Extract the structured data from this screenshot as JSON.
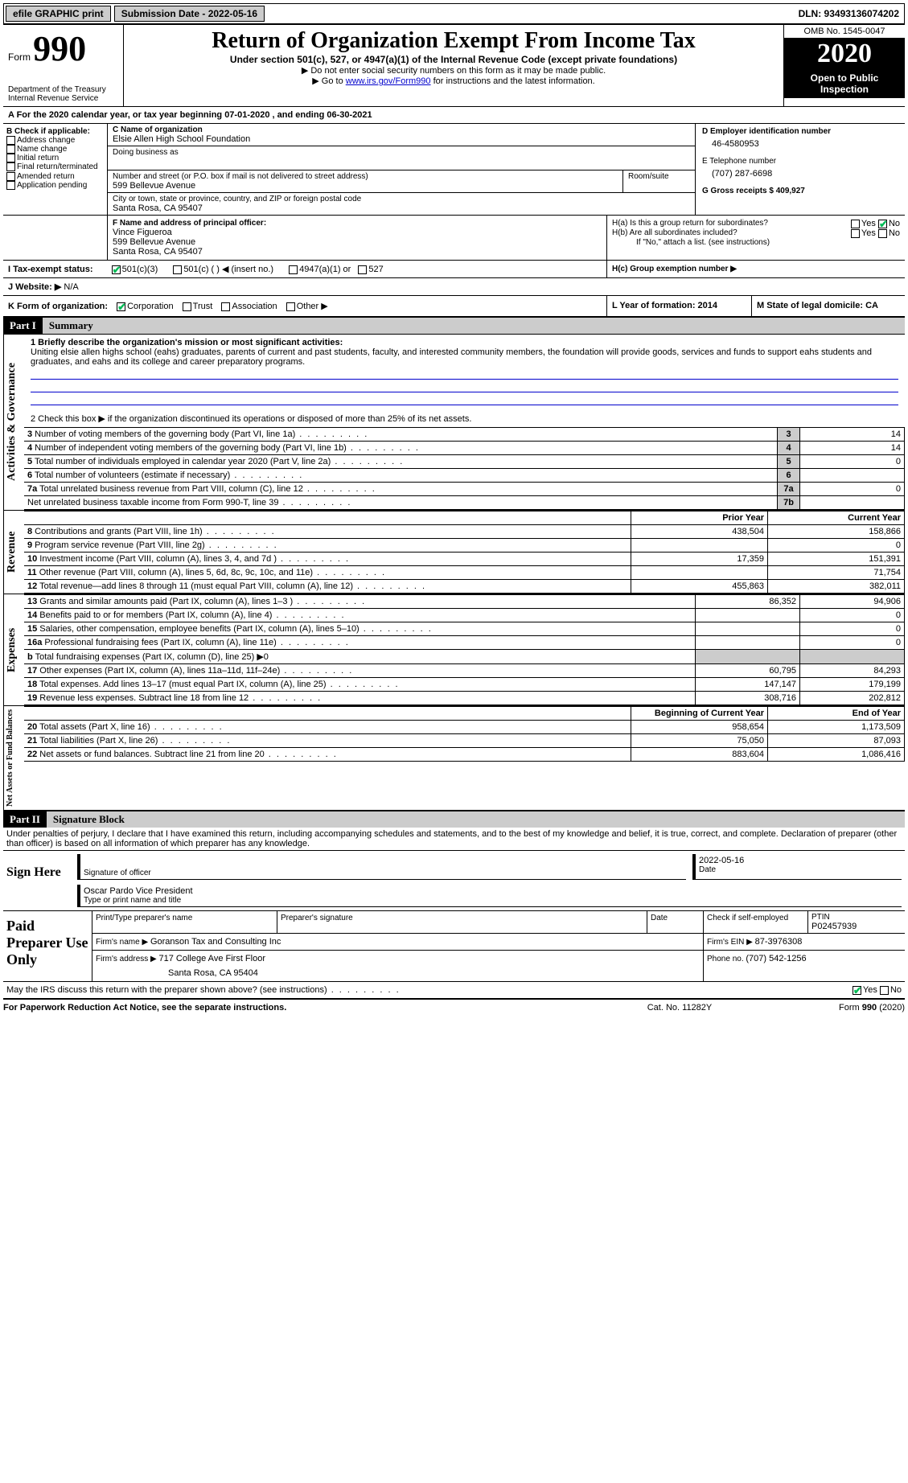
{
  "topbar": {
    "efile": "efile GRAPHIC print",
    "submission_label": "Submission Date - 2022-05-16",
    "dln_label": "DLN: 93493136074202"
  },
  "header": {
    "form_prefix": "Form",
    "form_number": "990",
    "dept": "Department of the Treasury\nInternal Revenue Service",
    "title": "Return of Organization Exempt From Income Tax",
    "subtitle": "Under section 501(c), 527, or 4947(a)(1) of the Internal Revenue Code (except private foundations)",
    "instr1": "▶ Do not enter social security numbers on this form as it may be made public.",
    "instr2_pre": "▶ Go to ",
    "instr2_link": "www.irs.gov/Form990",
    "instr2_post": " for instructions and the latest information.",
    "omb": "OMB No. 1545-0047",
    "year": "2020",
    "open_public": "Open to Public Inspection"
  },
  "sectionA": {
    "line": "A   For the 2020 calendar year, or tax year beginning 07-01-2020   , and ending 06-30-2021"
  },
  "sectionB": {
    "label": "B Check if applicable:",
    "items": [
      "Address change",
      "Name change",
      "Initial return",
      "Final return/terminated",
      "Amended return",
      "Application pending"
    ]
  },
  "sectionC": {
    "label": "C Name of organization",
    "name": "Elsie Allen High School Foundation",
    "dba_label": "Doing business as",
    "addr_label": "Number and street (or P.O. box if mail is not delivered to street address)",
    "addr": "599 Bellevue Avenue",
    "room_label": "Room/suite",
    "city_label": "City or town, state or province, country, and ZIP or foreign postal code",
    "city": "Santa Rosa, CA  95407"
  },
  "sectionD": {
    "label": "D Employer identification number",
    "value": "46-4580953"
  },
  "sectionE": {
    "label": "E Telephone number",
    "value": "(707) 287-6698"
  },
  "sectionG": {
    "label": "G Gross receipts $ 409,927"
  },
  "sectionF": {
    "label": "F  Name and address of principal officer:",
    "name": "Vince Figueroa",
    "addr1": "599 Bellevue Avenue",
    "addr2": "Santa Rosa, CA  95407"
  },
  "sectionH": {
    "a": "H(a)  Is this a group return for subordinates?",
    "b": "H(b)  Are all subordinates included?",
    "note": "If \"No,\" attach a list. (see instructions)",
    "c": "H(c)  Group exemption number ▶",
    "yes": "Yes",
    "no": "No"
  },
  "sectionI": {
    "label": "I   Tax-exempt status:",
    "o1": "501(c)(3)",
    "o2": "501(c) (  ) ◀ (insert no.)",
    "o3": "4947(a)(1) or",
    "o4": "527"
  },
  "sectionJ": {
    "label": "J   Website: ▶",
    "value": " N/A"
  },
  "sectionK": {
    "label": "K Form of organization:",
    "o1": "Corporation",
    "o2": "Trust",
    "o3": "Association",
    "o4": "Other ▶"
  },
  "sectionL": {
    "label": "L Year of formation: 2014"
  },
  "sectionM": {
    "label": "M State of legal domicile: CA"
  },
  "part1": {
    "hdr": "Part I",
    "title": "Summary",
    "side_ag": "Activities & Governance",
    "side_rev": "Revenue",
    "side_exp": "Expenses",
    "side_na": "Net Assets or Fund Balances",
    "line1_label": "1  Briefly describe the organization's mission or most significant activities:",
    "line1_text": "Uniting elsie allen highs school (eahs) graduates, parents of current and past students, faculty, and interested community members, the foundation will provide goods, services and funds to support eahs students and graduates, and eahs and its college and career preparatory programs.",
    "line2": "2   Check this box ▶      if the organization discontinued its operations or disposed of more than 25% of its net assets.",
    "rows_ag": [
      {
        "n": "3",
        "t": "Number of voting members of the governing body (Part VI, line 1a)",
        "k": "3",
        "v": "14"
      },
      {
        "n": "4",
        "t": "Number of independent voting members of the governing body (Part VI, line 1b)",
        "k": "4",
        "v": "14"
      },
      {
        "n": "5",
        "t": "Total number of individuals employed in calendar year 2020 (Part V, line 2a)",
        "k": "5",
        "v": "0"
      },
      {
        "n": "6",
        "t": "Total number of volunteers (estimate if necessary)",
        "k": "6",
        "v": ""
      },
      {
        "n": "7a",
        "t": "Total unrelated business revenue from Part VIII, column (C), line 12",
        "k": "7a",
        "v": "0"
      },
      {
        "n": "",
        "t": "Net unrelated business taxable income from Form 990-T, line 39",
        "k": "7b",
        "v": ""
      }
    ],
    "col_prior": "Prior Year",
    "col_current": "Current Year",
    "rows_rev": [
      {
        "n": "8",
        "t": "Contributions and grants (Part VIII, line 1h)",
        "p": "438,504",
        "c": "158,866"
      },
      {
        "n": "9",
        "t": "Program service revenue (Part VIII, line 2g)",
        "p": "",
        "c": "0"
      },
      {
        "n": "10",
        "t": "Investment income (Part VIII, column (A), lines 3, 4, and 7d )",
        "p": "17,359",
        "c": "151,391"
      },
      {
        "n": "11",
        "t": "Other revenue (Part VIII, column (A), lines 5, 6d, 8c, 9c, 10c, and 11e)",
        "p": "",
        "c": "71,754"
      },
      {
        "n": "12",
        "t": "Total revenue—add lines 8 through 11 (must equal Part VIII, column (A), line 12)",
        "p": "455,863",
        "c": "382,011"
      }
    ],
    "rows_exp": [
      {
        "n": "13",
        "t": "Grants and similar amounts paid (Part IX, column (A), lines 1–3 )",
        "p": "86,352",
        "c": "94,906"
      },
      {
        "n": "14",
        "t": "Benefits paid to or for members (Part IX, column (A), line 4)",
        "p": "",
        "c": "0"
      },
      {
        "n": "15",
        "t": "Salaries, other compensation, employee benefits (Part IX, column (A), lines 5–10)",
        "p": "",
        "c": "0"
      },
      {
        "n": "16a",
        "t": "Professional fundraising fees (Part IX, column (A), line 11e)",
        "p": "",
        "c": "0"
      },
      {
        "n": "b",
        "t": "Total fundraising expenses (Part IX, column (D), line 25) ▶0",
        "p": "—",
        "c": "—"
      },
      {
        "n": "17",
        "t": "Other expenses (Part IX, column (A), lines 11a–11d, 11f–24e)",
        "p": "60,795",
        "c": "84,293"
      },
      {
        "n": "18",
        "t": "Total expenses. Add lines 13–17 (must equal Part IX, column (A), line 25)",
        "p": "147,147",
        "c": "179,199"
      },
      {
        "n": "19",
        "t": "Revenue less expenses. Subtract line 18 from line 12",
        "p": "308,716",
        "c": "202,812"
      }
    ],
    "col_begin": "Beginning of Current Year",
    "col_end": "End of Year",
    "rows_na": [
      {
        "n": "20",
        "t": "Total assets (Part X, line 16)",
        "p": "958,654",
        "c": "1,173,509"
      },
      {
        "n": "21",
        "t": "Total liabilities (Part X, line 26)",
        "p": "75,050",
        "c": "87,093"
      },
      {
        "n": "22",
        "t": "Net assets or fund balances. Subtract line 21 from line 20",
        "p": "883,604",
        "c": "1,086,416"
      }
    ]
  },
  "part2": {
    "hdr": "Part II",
    "title": "Signature Block",
    "decl": "Under penalties of perjury, I declare that I have examined this return, including accompanying schedules and statements, and to the best of my knowledge and belief, it is true, correct, and complete. Declaration of preparer (other than officer) is based on all information of which preparer has any knowledge.",
    "sign_here": "Sign Here",
    "sig_officer": "Signature of officer",
    "sig_date": "2022-05-16",
    "date_lbl": "Date",
    "officer_name": "Oscar Pardo  Vice President",
    "type_name": "Type or print name and title",
    "paid": "Paid Preparer Use Only",
    "prep_name_lbl": "Print/Type preparer's name",
    "prep_sig_lbl": "Preparer's signature",
    "prep_date_lbl": "Date",
    "check_self": "Check       if self-employed",
    "ptin_lbl": "PTIN",
    "ptin": "P02457939",
    "firm_name_lbl": "Firm's name    ▶ ",
    "firm_name": "Goranson Tax and Consulting Inc",
    "firm_ein_lbl": "Firm's EIN ▶ ",
    "firm_ein": "87-3976308",
    "firm_addr_lbl": "Firm's address ▶ ",
    "firm_addr1": "717 College Ave First Floor",
    "firm_addr2": "Santa Rosa, CA  95404",
    "firm_phone_lbl": "Phone no. ",
    "firm_phone": "(707) 542-1256",
    "irs_q": "May the IRS discuss this return with the preparer shown above? (see instructions)",
    "yes": "Yes",
    "no": "No"
  },
  "footer": {
    "pra": "For Paperwork Reduction Act Notice, see the separate instructions.",
    "cat": "Cat. No. 11282Y",
    "form": "Form 990 (2020)"
  }
}
